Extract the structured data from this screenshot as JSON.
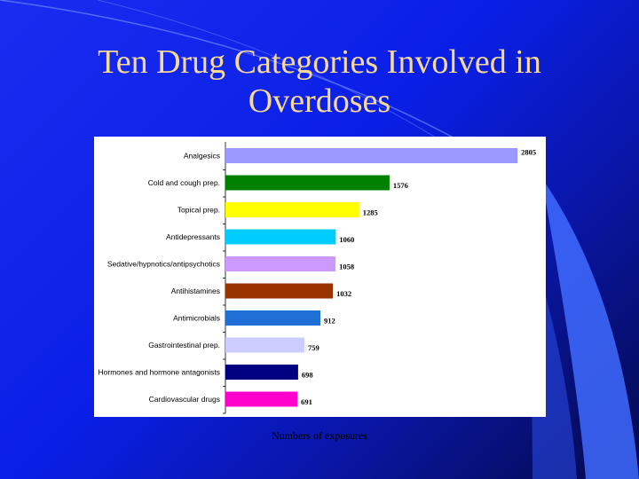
{
  "slide": {
    "title": "Ten Drug Categories Involved in Overdoses",
    "background_color": "#1a2cf0",
    "title_color": "#f7d99a"
  },
  "chart_data": {
    "type": "bar",
    "orientation": "horizontal",
    "title": "Ten Drug Categories Involved in Overdoses",
    "xlabel": "Numbers of exposures",
    "ylabel": "",
    "categories": [
      "Analgesics",
      "Cold and cough prep.",
      "Topical prep.",
      "Antidepressants",
      "Sedative/hypnotics/antipsychotics",
      "Antihistamines",
      "Antimicrobials",
      "Gastrointestinal prep.",
      "Hormones and hormone antagonists",
      "Cardiovascular drugs"
    ],
    "values": [
      2805,
      1576,
      1285,
      1060,
      1058,
      1032,
      912,
      759,
      698,
      691
    ],
    "colors": [
      "#9999ff",
      "#008000",
      "#ffff00",
      "#00ccff",
      "#cc99ff",
      "#993300",
      "#1f6fd6",
      "#ccccff",
      "#000080",
      "#ff00cc"
    ],
    "xlim": [
      0,
      3000
    ],
    "grid": false,
    "legend": "none"
  }
}
